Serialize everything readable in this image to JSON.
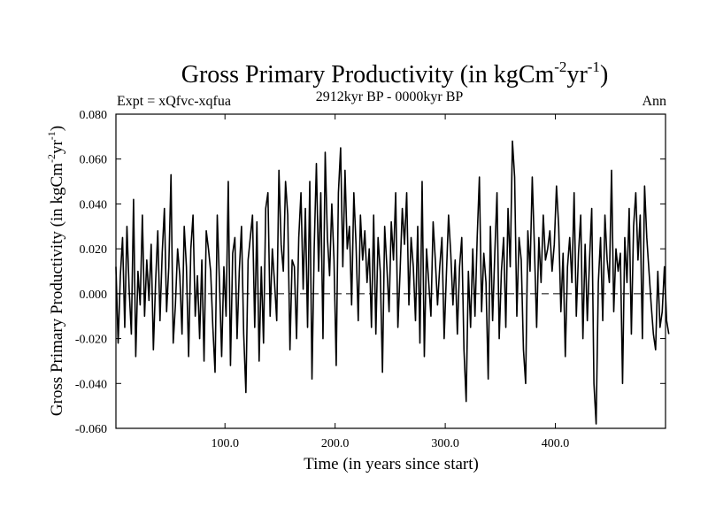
{
  "chart_data": {
    "type": "line",
    "title": {
      "main": "Gross Primary Productivity (in kgCm",
      "sup1": "-2",
      "mid": "yr",
      "sup2": "-1",
      "end": ")"
    },
    "subtitle_left": "Expt = xQfvc-xqfua",
    "subtitle_center": "2912kyr BP - 0000kyr BP",
    "subtitle_right": "Ann",
    "xlabel": "Time (in years since start)",
    "ylabel": {
      "main": "Gross Primary Productivity (in kgCm",
      "sup1": "-2",
      "mid": "yr",
      "sup2": "-1",
      "end": ")"
    },
    "xlim": [
      1,
      500
    ],
    "ylim": [
      -0.06,
      0.08
    ],
    "xticks": [
      100,
      200,
      300,
      400
    ],
    "xtick_labels": [
      "100.0",
      "200.0",
      "300.0",
      "400.0"
    ],
    "yticks": [
      -0.06,
      -0.04,
      -0.02,
      0.0,
      0.02,
      0.04,
      0.06,
      0.08
    ],
    "ytick_labels": [
      "-0.060",
      "-0.040",
      "-0.020",
      "0.000",
      "0.020",
      "0.040",
      "0.060",
      "0.080"
    ],
    "reference_line": 0.0,
    "series": [
      {
        "name": "Ann",
        "x_start": 1,
        "x_step": 2,
        "values": [
          0.012,
          -0.022,
          0.008,
          0.025,
          -0.015,
          0.03,
          0.002,
          -0.018,
          0.042,
          -0.028,
          0.01,
          -0.005,
          0.035,
          -0.01,
          0.015,
          -0.003,
          0.022,
          -0.025,
          0.005,
          0.028,
          -0.012,
          0.018,
          0.038,
          -0.008,
          0.012,
          0.053,
          -0.022,
          -0.005,
          0.02,
          0.008,
          -0.018,
          0.03,
          0.012,
          -0.028,
          0.02,
          0.035,
          -0.01,
          0.008,
          -0.02,
          0.015,
          -0.03,
          0.028,
          0.02,
          0.01,
          -0.015,
          -0.035,
          0.035,
          0.005,
          -0.028,
          0.012,
          -0.01,
          0.05,
          -0.032,
          0.018,
          0.025,
          -0.02,
          0.01,
          0.03,
          -0.018,
          -0.044,
          0.015,
          0.025,
          0.035,
          -0.015,
          0.032,
          -0.03,
          0.012,
          -0.022,
          0.038,
          0.045,
          -0.01,
          0.02,
          0.005,
          -0.012,
          0.055,
          0.022,
          0.01,
          0.05,
          0.035,
          -0.025,
          0.015,
          0.012,
          -0.02,
          0.025,
          0.045,
          0.002,
          0.038,
          -0.015,
          0.05,
          -0.038,
          0.02,
          0.058,
          0.01,
          0.045,
          -0.02,
          0.063,
          0.025,
          0.008,
          0.04,
          0.015,
          -0.032,
          0.045,
          0.065,
          0.012,
          0.055,
          0.02,
          0.03,
          -0.005,
          0.045,
          0.022,
          -0.012,
          0.035,
          0.015,
          0.028,
          0.005,
          0.02,
          -0.015,
          0.035,
          -0.018,
          0.025,
          0.01,
          -0.035,
          0.03,
          0.012,
          -0.008,
          0.032,
          0.015,
          0.045,
          -0.015,
          0.01,
          0.038,
          0.022,
          0.045,
          -0.005,
          0.025,
          0.012,
          -0.012,
          0.03,
          -0.022,
          0.05,
          -0.028,
          0.02,
          0.005,
          -0.01,
          0.032,
          0.015,
          -0.005,
          0.012,
          0.025,
          -0.02,
          0.008,
          0.035,
          0.018,
          -0.005,
          0.015,
          -0.018,
          0.012,
          0.025,
          -0.025,
          -0.048,
          0.01,
          -0.015,
          0.02,
          -0.01,
          0.025,
          0.052,
          -0.008,
          0.018,
          0.005,
          -0.038,
          0.03,
          -0.012,
          0.018,
          0.045,
          -0.02,
          0.01,
          0.025,
          -0.015,
          0.038,
          0.012,
          0.068,
          0.052,
          -0.01,
          0.025,
          0.015,
          -0.025,
          -0.04,
          0.028,
          0.01,
          0.052,
          0.02,
          -0.015,
          0.025,
          0.005,
          0.035,
          0.015,
          0.02,
          0.028,
          0.01,
          0.022,
          0.048,
          0.03,
          -0.008,
          0.018,
          -0.028,
          0.012,
          0.025,
          0.005,
          0.045,
          -0.01,
          0.018,
          0.035,
          -0.02,
          0.022,
          -0.012,
          0.015,
          0.038,
          -0.04,
          -0.058,
          0.005,
          0.025,
          -0.012,
          0.035,
          0.015,
          0.005,
          0.055,
          -0.008,
          0.02,
          0.01,
          0.018,
          -0.04,
          0.025,
          0.005,
          0.038,
          -0.018,
          0.03,
          0.045,
          0.015,
          0.035,
          -0.02,
          0.048,
          0.025,
          0.01,
          -0.005,
          -0.018,
          -0.025,
          0.01,
          -0.015,
          -0.008,
          0.012,
          -0.012,
          -0.018
        ]
      }
    ]
  }
}
